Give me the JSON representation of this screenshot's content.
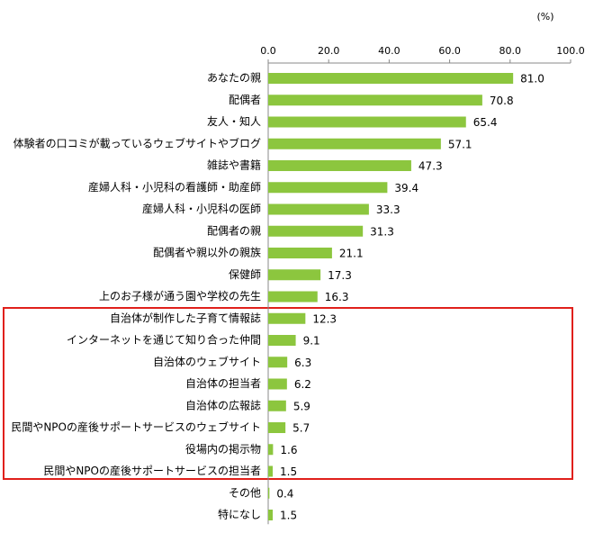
{
  "chart_data": {
    "type": "bar",
    "orientation": "horizontal",
    "unit": "(%)",
    "categories": [
      "あなたの親",
      "配偶者",
      "友人・知人",
      "体験者の口コミが載っているウェブサイトやブログ",
      "雑誌や書籍",
      "産婦人科・小児科の看護師・助産師",
      "産婦人科・小児科の医師",
      "配偶者の親",
      "配偶者や親以外の親族",
      "保健師",
      "上のお子様が通う園や学校の先生",
      "自治体が制作した子育て情報誌",
      "インターネットを通じて知り合った仲間",
      "自治体のウェブサイト",
      "自治体の担当者",
      "自治体の広報誌",
      "民間やNPOの産後サポートサービスのウェブサイト",
      "役場内の掲示物",
      "民間やNPOの産後サポートサービスの担当者",
      "その他",
      "特になし"
    ],
    "values": [
      81.0,
      70.8,
      65.4,
      57.1,
      47.3,
      39.4,
      33.3,
      31.3,
      21.1,
      17.3,
      16.3,
      12.3,
      9.1,
      6.3,
      6.2,
      5.9,
      5.7,
      1.6,
      1.5,
      0.4,
      1.5
    ],
    "value_labels": [
      "81.0",
      "70.8",
      "65.4",
      "57.1",
      "47.3",
      "39.4",
      "33.3",
      "31.3",
      "21.1",
      "17.3",
      "16.3",
      "12.3",
      "9.1",
      "6.3",
      "6.2",
      "5.9",
      "5.7",
      "1.6",
      "1.5",
      "0.4",
      "1.5"
    ],
    "color": "#8cc63e",
    "xlim": [
      0,
      100
    ],
    "xticks": [
      {
        "value": 0,
        "label": "0.0"
      },
      {
        "value": 20,
        "label": "20.0"
      },
      {
        "value": 40,
        "label": "40.0"
      },
      {
        "value": 60,
        "label": "60.0"
      },
      {
        "value": 80,
        "label": "80.0"
      },
      {
        "value": 100,
        "label": "100.0"
      }
    ]
  }
}
